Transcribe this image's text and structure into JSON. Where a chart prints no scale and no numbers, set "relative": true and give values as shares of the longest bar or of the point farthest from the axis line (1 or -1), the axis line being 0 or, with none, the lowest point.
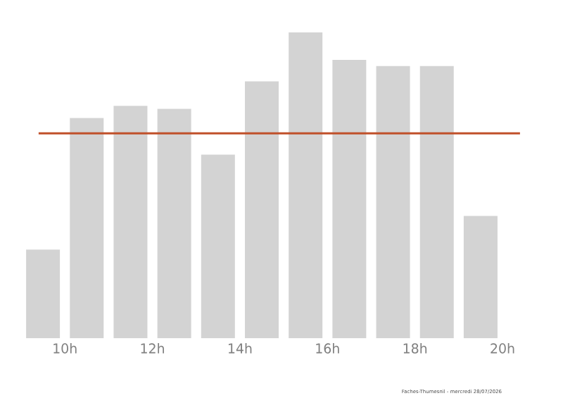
{
  "chart_data": {
    "type": "bar",
    "relative": true,
    "x": [
      9.5,
      10.5,
      11.5,
      12.5,
      13.5,
      14.5,
      15.5,
      16.5,
      17.5,
      18.5,
      19.5
    ],
    "values": [
      0.29,
      0.72,
      0.76,
      0.75,
      0.6,
      0.84,
      1,
      0.91,
      0.89,
      0.89,
      0.4
    ],
    "color": "#d3d3d3",
    "xticks": [
      {
        "value": 10,
        "label": "10h"
      },
      {
        "value": 12,
        "label": "12h"
      },
      {
        "value": 14,
        "label": "14h"
      },
      {
        "value": 16,
        "label": "16h"
      },
      {
        "value": 18,
        "label": "18h"
      },
      {
        "value": 20,
        "label": "20h"
      }
    ],
    "xlim": [
      9,
      20
    ],
    "ref_lines": [
      {
        "axis": "y",
        "value": 0.67,
        "color": "#c0502a"
      }
    ],
    "annotations": [
      "Faches-Thumesnil - mercredi 28/07/2026"
    ]
  }
}
